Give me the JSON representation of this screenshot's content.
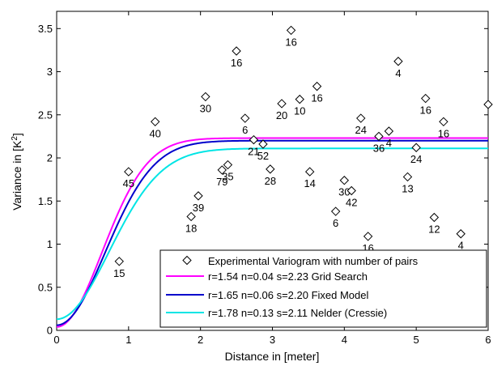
{
  "chart_data": {
    "type": "scatter",
    "xlabel": "Distance in [meter]",
    "ylabel_main": "Variance in [K",
    "ylabel_sup": "2",
    "ylabel_end": "]",
    "xlim": [
      0,
      6
    ],
    "ylim": [
      0,
      3.7
    ],
    "xticks": [
      "0",
      "1",
      "2",
      "3",
      "4",
      "5",
      "6"
    ],
    "yticks": [
      "0",
      "0.5",
      "1",
      "1.5",
      "2",
      "2.5",
      "3",
      "3.5"
    ],
    "xtick_values": [
      0,
      1,
      2,
      3,
      4,
      5,
      6
    ],
    "ytick_values": [
      0,
      0.5,
      1,
      1.5,
      2,
      2.5,
      3,
      3.5
    ],
    "grid": false,
    "legend_position": "bottom-right",
    "experimental": {
      "name": "Experimental Variogram with number of pairs",
      "points": [
        {
          "x": 0.87,
          "y": 0.8,
          "n": "15"
        },
        {
          "x": 1.0,
          "y": 1.84,
          "n": "45"
        },
        {
          "x": 1.37,
          "y": 2.42,
          "n": "40"
        },
        {
          "x": 1.87,
          "y": 1.32,
          "n": "18"
        },
        {
          "x": 1.97,
          "y": 1.56,
          "n": "39"
        },
        {
          "x": 2.07,
          "y": 2.71,
          "n": "30"
        },
        {
          "x": 2.3,
          "y": 1.86,
          "n": "79"
        },
        {
          "x": 2.38,
          "y": 1.92,
          "n": "35"
        },
        {
          "x": 2.5,
          "y": 3.24,
          "n": "16"
        },
        {
          "x": 2.62,
          "y": 2.46,
          "n": "6"
        },
        {
          "x": 2.74,
          "y": 2.21,
          "n": "21"
        },
        {
          "x": 2.87,
          "y": 2.16,
          "n": "52"
        },
        {
          "x": 2.97,
          "y": 1.87,
          "n": "28"
        },
        {
          "x": 3.13,
          "y": 2.63,
          "n": "20"
        },
        {
          "x": 3.26,
          "y": 3.48,
          "n": "16"
        },
        {
          "x": 3.38,
          "y": 2.68,
          "n": "10"
        },
        {
          "x": 3.52,
          "y": 1.84,
          "n": "14"
        },
        {
          "x": 3.62,
          "y": 2.83,
          "n": "16"
        },
        {
          "x": 3.88,
          "y": 1.38,
          "n": "6"
        },
        {
          "x": 4.0,
          "y": 1.74,
          "n": "30"
        },
        {
          "x": 4.1,
          "y": 1.62,
          "n": "42"
        },
        {
          "x": 4.23,
          "y": 2.46,
          "n": "24"
        },
        {
          "x": 4.33,
          "y": 1.09,
          "n": "16"
        },
        {
          "x": 4.48,
          "y": 2.25,
          "n": "36"
        },
        {
          "x": 4.62,
          "y": 2.31,
          "n": "4"
        },
        {
          "x": 4.75,
          "y": 3.12,
          "n": "4"
        },
        {
          "x": 4.88,
          "y": 1.78,
          "n": "13"
        },
        {
          "x": 5.0,
          "y": 2.12,
          "n": "24"
        },
        {
          "x": 5.13,
          "y": 2.69,
          "n": "16"
        },
        {
          "x": 5.25,
          "y": 1.31,
          "n": "12"
        },
        {
          "x": 5.38,
          "y": 2.42,
          "n": "16"
        },
        {
          "x": 5.62,
          "y": 1.12,
          "n": "4"
        },
        {
          "x": 6.0,
          "y": 2.62,
          "n": ""
        }
      ]
    },
    "series": [
      {
        "name": "r=1.54 n=0.04 s=2.23 Grid Search",
        "color": "#ff00ff",
        "r": 1.54,
        "n": 0.04,
        "s": 2.23
      },
      {
        "name": "r=1.65 n=0.06 s=2.20 Fixed Model",
        "color": "#0000cc",
        "r": 1.65,
        "n": 0.06,
        "s": 2.2
      },
      {
        "name": "r=1.78 n=0.13 s=2.11 Nelder (Cressie)",
        "color": "#00e5e5",
        "r": 1.78,
        "n": 0.13,
        "s": 2.11
      }
    ]
  }
}
